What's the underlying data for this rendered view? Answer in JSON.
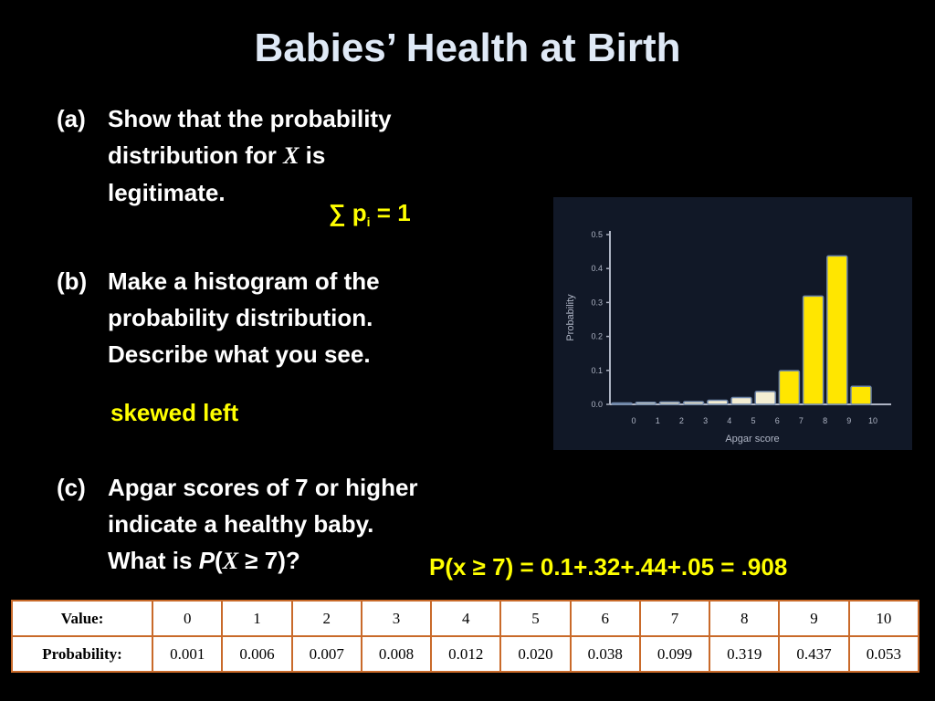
{
  "title": "Babies’ Health at Birth",
  "questions": {
    "a": {
      "label": "(a)",
      "lines": [
        "Show that the probability",
        "distribution for",
        "is",
        "legitimate."
      ],
      "var": "X"
    },
    "b": {
      "label": "(b)",
      "lines": [
        "Make a histogram of the",
        "probability distribution.",
        "Describe what you see."
      ]
    },
    "c": {
      "label": "(c)",
      "lines": [
        "Apgar scores of 7 or higher",
        "indicate a healthy baby.",
        "What is",
        "(",
        "≥ 7)?"
      ],
      "p": "P",
      "var": "X"
    }
  },
  "answers": {
    "a_sigma": "∑",
    "a_p": "p",
    "a_sub": "i",
    "a_rest": " = 1",
    "b": "skewed left",
    "c": "P(x ≥ 7) = 0.1+.32+.44+.05 = .908"
  },
  "colors": {
    "answer": "#ffff00",
    "bar": "#ffe600",
    "table_border": "#c96a2a"
  },
  "table": {
    "row_labels": [
      "Value:",
      "Probability:"
    ],
    "values": [
      "0",
      "1",
      "2",
      "3",
      "4",
      "5",
      "6",
      "7",
      "8",
      "9",
      "10"
    ],
    "probabilities": [
      "0.001",
      "0.006",
      "0.007",
      "0.008",
      "0.012",
      "0.020",
      "0.038",
      "0.099",
      "0.319",
      "0.437",
      "0.053"
    ]
  },
  "chart_data": {
    "type": "bar",
    "categories": [
      "0",
      "1",
      "2",
      "3",
      "4",
      "5",
      "6",
      "7",
      "8",
      "9",
      "10"
    ],
    "values": [
      0.001,
      0.006,
      0.007,
      0.008,
      0.012,
      0.02,
      0.038,
      0.099,
      0.319,
      0.437,
      0.053
    ],
    "xlabel": "Apgar score",
    "ylabel": "Probability",
    "ylim": [
      0,
      0.5
    ],
    "yticks": [
      "0.0",
      "0.1",
      "0.2",
      "0.3",
      "0.4",
      "0.5"
    ],
    "grid": false
  }
}
